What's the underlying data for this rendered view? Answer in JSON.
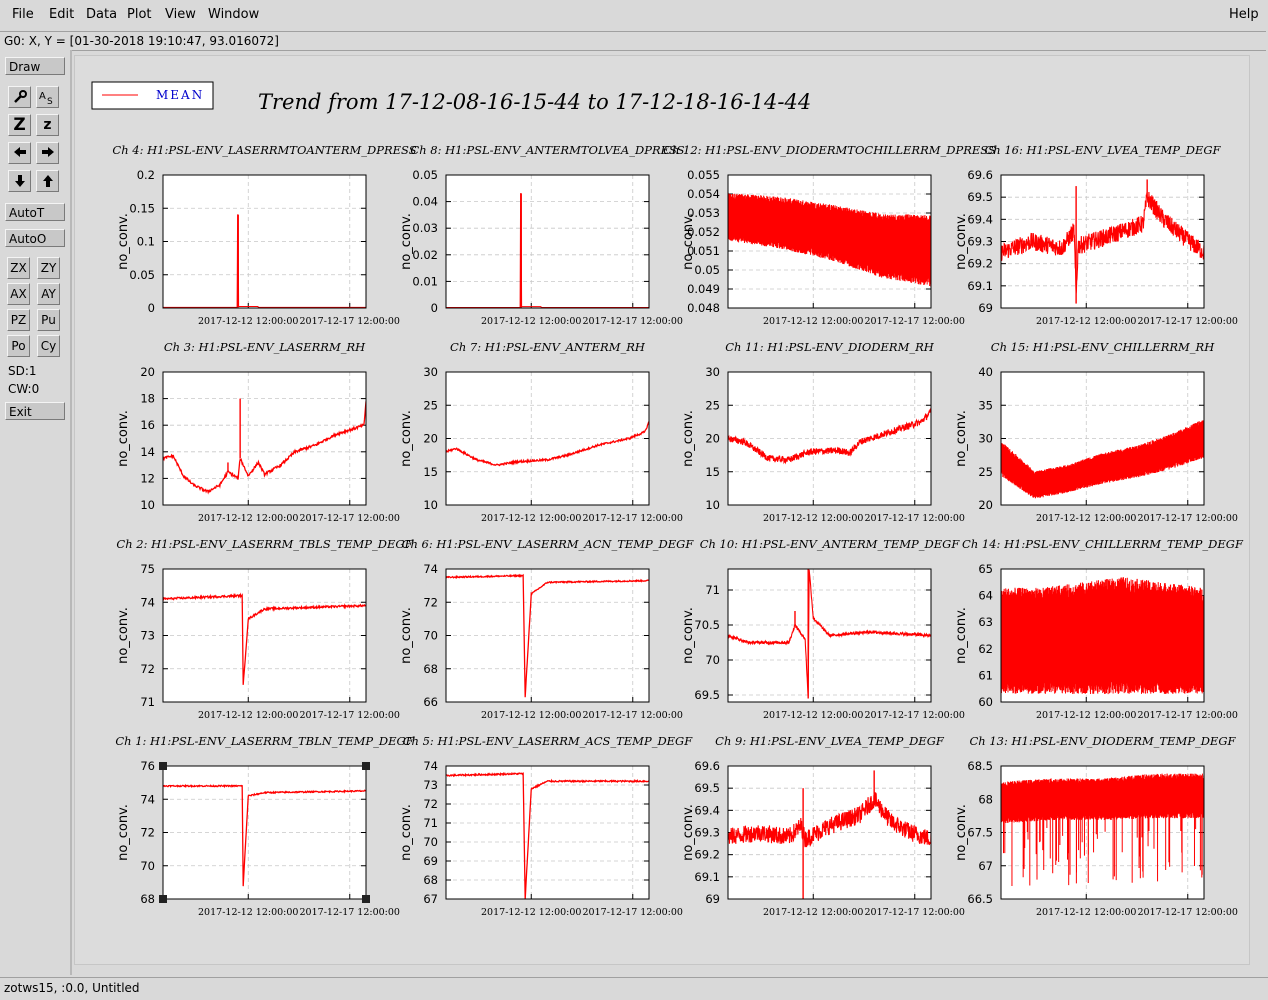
{
  "menu": {
    "file": "File",
    "edit": "Edit",
    "data": "Data",
    "plot": "Plot",
    "view": "View",
    "window": "Window",
    "help": "Help"
  },
  "coord_readout": "G0: X, Y = [01-30-2018 19:10:47, 93.016072]",
  "toolbar": {
    "draw": "Draw",
    "z_big": "Z",
    "z_small": "z",
    "autot": "AutoT",
    "autoo": "AutoO",
    "zx": "ZX",
    "zy": "ZY",
    "ax": "AX",
    "ay": "AY",
    "pz": "PZ",
    "pu": "Pu",
    "po": "Po",
    "cy": "Cy",
    "sd": "SD:1",
    "cw": "CW:0",
    "exit": "Exit"
  },
  "status_text": "zotws15, :0.0, Untitled",
  "legend": {
    "label": "MEAN",
    "color": "#ff0000"
  },
  "main_title": "Trend from 17-12-08-16-15-44 to 17-12-18-16-14-44",
  "colors": {
    "trace": "#ff0000",
    "grid": "#c8c8c8",
    "legend_text": "#0000cc"
  },
  "chart_data": [
    {
      "title": "Ch 4: H1:PSL-ENV_LASERRMTOANTERM_DPRESS",
      "type": "line",
      "ylabel": "no_conv.",
      "ylim": [
        0,
        0.2
      ],
      "yticks": [
        "0",
        "0.05",
        "0.1",
        "0.15",
        "0.2"
      ],
      "xticks": [
        "2017-12-12 12:00:00",
        "2017-12-17 12:00:00"
      ],
      "shape": "spike",
      "base": 0.001,
      "spike_at": 0.37,
      "spike_to": 0.14
    },
    {
      "title": "Ch 8: H1:PSL-ENV_ANTERMTOLVEA_DPRESS",
      "type": "line",
      "ylabel": "no_conv.",
      "ylim": [
        0,
        0.05
      ],
      "yticks": [
        "0",
        "0.01",
        "0.02",
        "0.03",
        "0.04",
        "0.05"
      ],
      "xticks": [
        "2017-12-12 12:00:00",
        "2017-12-17 12:00:00"
      ],
      "shape": "spike",
      "base": 0.0002,
      "spike_at": 0.37,
      "spike_to": 0.043
    },
    {
      "title": "Ch 12: H1:PSL-ENV_DIODERMTOCHILLERRM_DPRESS",
      "type": "line",
      "ylabel": "no_conv.",
      "ylim": [
        0.048,
        0.055
      ],
      "yticks": [
        "0.048",
        "0.049",
        "0.05",
        "0.051",
        "0.052",
        "0.053",
        "0.054",
        "0.055"
      ],
      "xticks": [
        "2017-12-12 12:00:00",
        "2017-12-17 12:00:00"
      ],
      "shape": "band",
      "center": [
        0.0528,
        0.0525,
        0.052,
        0.0513,
        0.051
      ],
      "halfwidth": [
        0.0012,
        0.0013,
        0.0014,
        0.0016,
        0.0018
      ]
    },
    {
      "title": "Ch 16: H1:PSL-ENV_LVEA_TEMP_DEGF",
      "type": "line",
      "ylabel": "no_conv.",
      "ylim": [
        69,
        69.6
      ],
      "yticks": [
        "69",
        "69.1",
        "69.2",
        "69.3",
        "69.4",
        "69.5",
        "69.6"
      ],
      "xticks": [
        "2017-12-12 12:00:00",
        "2017-12-17 12:00:00"
      ],
      "shape": "noisy",
      "points": [
        [
          0,
          69.25
        ],
        [
          0.15,
          69.3
        ],
        [
          0.3,
          69.27
        ],
        [
          0.36,
          69.35
        ],
        [
          0.37,
          69.05
        ],
        [
          0.38,
          69.28
        ],
        [
          0.55,
          69.33
        ],
        [
          0.7,
          69.38
        ],
        [
          0.72,
          69.5
        ],
        [
          0.8,
          69.4
        ],
        [
          0.9,
          69.32
        ],
        [
          1,
          69.25
        ]
      ],
      "noise": 0.04,
      "spikes": [
        [
          0.37,
          69.02,
          69.55
        ],
        [
          0.72,
          69.58
        ]
      ]
    },
    {
      "title": "Ch 3: H1:PSL-ENV_LASERRM_RH",
      "type": "line",
      "ylabel": "no_conv.",
      "ylim": [
        10,
        20
      ],
      "yticks": [
        "10",
        "12",
        "14",
        "16",
        "18",
        "20"
      ],
      "xticks": [
        "2017-12-12 12:00:00",
        "2017-12-17 12:00:00"
      ],
      "shape": "smooth",
      "points": [
        [
          0,
          13.5
        ],
        [
          0.05,
          13.7
        ],
        [
          0.1,
          12.2
        ],
        [
          0.15,
          11.5
        ],
        [
          0.22,
          11.0
        ],
        [
          0.28,
          11.5
        ],
        [
          0.32,
          12.5
        ],
        [
          0.37,
          12.0
        ],
        [
          0.38,
          13.5
        ],
        [
          0.42,
          12.2
        ],
        [
          0.47,
          13.2
        ],
        [
          0.5,
          12.3
        ],
        [
          0.58,
          13.0
        ],
        [
          0.65,
          14.0
        ],
        [
          0.75,
          14.5
        ],
        [
          0.85,
          15.3
        ],
        [
          0.95,
          15.8
        ],
        [
          0.99,
          16.0
        ],
        [
          1,
          17.8
        ]
      ],
      "noise": 0.1,
      "spikes": [
        [
          0.38,
          18.0
        ],
        [
          0.32,
          13.2
        ]
      ]
    },
    {
      "title": "Ch 7: H1:PSL-ENV_ANTERM_RH",
      "type": "line",
      "ylabel": "no_conv.",
      "ylim": [
        10,
        30
      ],
      "yticks": [
        "10",
        "15",
        "20",
        "25",
        "30"
      ],
      "xticks": [
        "2017-12-12 12:00:00",
        "2017-12-17 12:00:00"
      ],
      "shape": "smooth",
      "points": [
        [
          0,
          18
        ],
        [
          0.05,
          18.5
        ],
        [
          0.15,
          16.8
        ],
        [
          0.25,
          16
        ],
        [
          0.35,
          16.5
        ],
        [
          0.5,
          16.8
        ],
        [
          0.6,
          17.5
        ],
        [
          0.75,
          19
        ],
        [
          0.9,
          20
        ],
        [
          0.98,
          21
        ],
        [
          1,
          22.5
        ]
      ],
      "noise": 0.15,
      "spikes": []
    },
    {
      "title": "Ch 11: H1:PSL-ENV_DIODERM_RH",
      "type": "line",
      "ylabel": "no_conv.",
      "ylim": [
        10,
        30
      ],
      "yticks": [
        "10",
        "15",
        "20",
        "25",
        "30"
      ],
      "xticks": [
        "2017-12-12 12:00:00",
        "2017-12-17 12:00:00"
      ],
      "shape": "noisy",
      "points": [
        [
          0,
          20
        ],
        [
          0.08,
          19.5
        ],
        [
          0.2,
          17
        ],
        [
          0.3,
          16.8
        ],
        [
          0.4,
          18
        ],
        [
          0.55,
          18.2
        ],
        [
          0.6,
          17.8
        ],
        [
          0.65,
          19.5
        ],
        [
          0.8,
          21
        ],
        [
          0.95,
          22.5
        ],
        [
          1,
          24
        ]
      ],
      "noise": 0.5,
      "spikes": []
    },
    {
      "title": "Ch 15: H1:PSL-ENV_CHILLERRM_RH",
      "type": "line",
      "ylabel": "no_conv.",
      "ylim": [
        20,
        40
      ],
      "yticks": [
        "20",
        "25",
        "30",
        "35",
        "40"
      ],
      "xticks": [
        "2017-12-12 12:00:00",
        "2017-12-17 12:00:00"
      ],
      "shape": "band",
      "center": [
        27,
        23,
        24,
        25.5,
        26.5,
        28,
        30
      ],
      "halfwidth": [
        2.5,
        2,
        2,
        2.2,
        2.3,
        2.5,
        2.8
      ]
    },
    {
      "title": "Ch 2: H1:PSL-ENV_LASERRM_TBLS_TEMP_DEGF",
      "type": "line",
      "ylabel": "no_conv.",
      "ylim": [
        71,
        75
      ],
      "yticks": [
        "71",
        "72",
        "73",
        "74",
        "75"
      ],
      "xticks": [
        "2017-12-12 12:00:00",
        "2017-12-17 12:00:00"
      ],
      "shape": "dip",
      "points": [
        [
          0,
          74.1
        ],
        [
          0.39,
          74.2
        ],
        [
          0.395,
          71.5
        ],
        [
          0.42,
          73.5
        ],
        [
          0.5,
          73.8
        ],
        [
          1,
          73.9
        ]
      ],
      "noise": 0.03
    },
    {
      "title": "Ch 6: H1:PSL-ENV_LASERRM_ACN_TEMP_DEGF",
      "type": "line",
      "ylabel": "no_conv.",
      "ylim": [
        66,
        74
      ],
      "yticks": [
        "66",
        "68",
        "70",
        "72",
        "74"
      ],
      "xticks": [
        "2017-12-12 12:00:00",
        "2017-12-17 12:00:00"
      ],
      "shape": "dip",
      "points": [
        [
          0,
          73.5
        ],
        [
          0.38,
          73.6
        ],
        [
          0.39,
          66.3
        ],
        [
          0.42,
          72.5
        ],
        [
          0.5,
          73.2
        ],
        [
          1,
          73.3
        ]
      ],
      "noise": 0.04
    },
    {
      "title": "Ch 10: H1:PSL-ENV_ANTERM_TEMP_DEGF",
      "type": "line",
      "ylabel": "no_conv.",
      "ylim": [
        69.4,
        71.3
      ],
      "yticks": [
        "69.5",
        "70",
        "70.5",
        "71"
      ],
      "xticks": [
        "2017-12-12 12:00:00",
        "2017-12-17 12:00:00"
      ],
      "shape": "noisy",
      "points": [
        [
          0,
          70.35
        ],
        [
          0.1,
          70.25
        ],
        [
          0.3,
          70.25
        ],
        [
          0.33,
          70.5
        ],
        [
          0.38,
          70.3
        ],
        [
          0.395,
          69.45
        ],
        [
          0.4,
          71.3
        ],
        [
          0.42,
          70.6
        ],
        [
          0.5,
          70.35
        ],
        [
          0.7,
          70.4
        ],
        [
          1,
          70.35
        ]
      ],
      "noise": 0.02,
      "spikes": [
        [
          0.395,
          69.45,
          71.3
        ],
        [
          0.33,
          70.7
        ]
      ]
    },
    {
      "title": "Ch 14: H1:PSL-ENV_CHILLERRM_TEMP_DEGF",
      "type": "line",
      "ylabel": "no_conv.",
      "ylim": [
        60,
        65
      ],
      "yticks": [
        "60",
        "61",
        "62",
        "63",
        "64",
        "65"
      ],
      "xticks": [
        "2017-12-12 12:00:00",
        "2017-12-17 12:00:00"
      ],
      "shape": "band",
      "center": [
        62.3,
        62.3,
        62.4,
        62.5,
        62.4,
        62.3
      ],
      "halfwidth": [
        1.9,
        1.9,
        2.0,
        2.1,
        2.0,
        1.9
      ]
    },
    {
      "title": "Ch 1: H1:PSL-ENV_LASERRM_TBLN_TEMP_DEGF",
      "type": "line",
      "ylabel": "no_conv.",
      "ylim": [
        68,
        76
      ],
      "yticks": [
        "68",
        "70",
        "72",
        "74",
        "76"
      ],
      "xticks": [
        "2017-12-12 12:00:00",
        "2017-12-17 12:00:00"
      ],
      "shape": "dip",
      "points": [
        [
          0,
          74.8
        ],
        [
          0.39,
          74.8
        ],
        [
          0.395,
          68.8
        ],
        [
          0.42,
          74.2
        ],
        [
          0.5,
          74.4
        ],
        [
          1,
          74.5
        ]
      ],
      "noise": 0.04
    },
    {
      "title": "Ch 5: H1:PSL-ENV_LASERRM_ACS_TEMP_DEGF",
      "type": "line",
      "ylabel": "no_conv.",
      "ylim": [
        67,
        74
      ],
      "yticks": [
        "67",
        "68",
        "69",
        "70",
        "71",
        "72",
        "73",
        "74"
      ],
      "xticks": [
        "2017-12-12 12:00:00",
        "2017-12-17 12:00:00"
      ],
      "shape": "dip",
      "points": [
        [
          0,
          73.5
        ],
        [
          0.38,
          73.6
        ],
        [
          0.39,
          67.0
        ],
        [
          0.42,
          72.8
        ],
        [
          0.5,
          73.2
        ],
        [
          1,
          73.2
        ]
      ],
      "noise": 0.04
    },
    {
      "title": "Ch 9: H1:PSL-ENV_LVEA_TEMP_DEGF",
      "type": "line",
      "ylabel": "no_conv.",
      "ylim": [
        69,
        69.6
      ],
      "yticks": [
        "69",
        "69.1",
        "69.2",
        "69.3",
        "69.4",
        "69.5",
        "69.6"
      ],
      "xticks": [
        "2017-12-12 12:00:00",
        "2017-12-17 12:00:00"
      ],
      "shape": "noisy",
      "points": [
        [
          0,
          69.28
        ],
        [
          0.15,
          69.3
        ],
        [
          0.3,
          69.28
        ],
        [
          0.36,
          69.33
        ],
        [
          0.38,
          69.27
        ],
        [
          0.5,
          69.33
        ],
        [
          0.65,
          69.38
        ],
        [
          0.72,
          69.45
        ],
        [
          0.8,
          69.35
        ],
        [
          0.9,
          69.3
        ],
        [
          1,
          69.27
        ]
      ],
      "noise": 0.04,
      "spikes": [
        [
          0.37,
          69.0,
          69.5
        ],
        [
          0.72,
          69.58
        ]
      ]
    },
    {
      "title": "Ch 13: H1:PSL-ENV_DIODERM_TEMP_DEGF",
      "type": "line",
      "ylabel": "no_conv.",
      "ylim": [
        66.5,
        68.5
      ],
      "yticks": [
        "66.5",
        "67",
        "67.5",
        "68",
        "68.5"
      ],
      "xticks": [
        "2017-12-12 12:00:00",
        "2017-12-17 12:00:00"
      ],
      "shape": "band",
      "center": [
        67.95,
        68.0,
        68.0,
        68.05,
        68.05
      ],
      "halfwidth": [
        0.3,
        0.3,
        0.3,
        0.32,
        0.32
      ],
      "downspikes": true
    }
  ]
}
